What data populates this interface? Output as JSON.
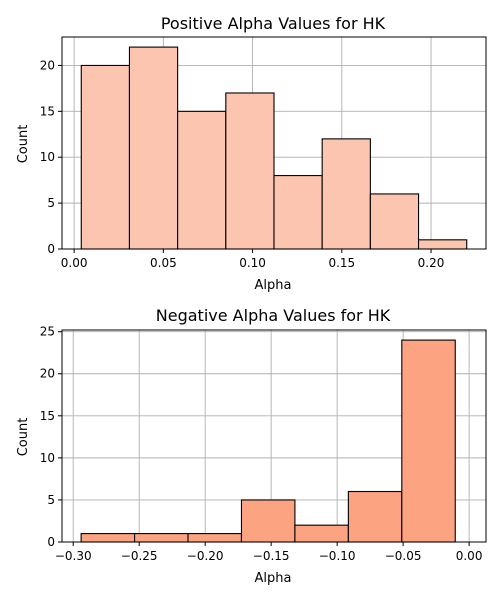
{
  "chart_data": [
    {
      "type": "bar",
      "title": "Positive Alpha Values for HK",
      "xlabel": "Alpha",
      "ylabel": "Count",
      "bin_edges": [
        0.004,
        0.031,
        0.058,
        0.085,
        0.112,
        0.139,
        0.166,
        0.193,
        0.22
      ],
      "values": [
        20,
        22,
        15,
        17,
        8,
        12,
        6,
        1
      ],
      "xlim": [
        -0.0068,
        0.2308
      ],
      "ylim": [
        0,
        23.1
      ],
      "xticks": [
        "0.00",
        "0.05",
        "0.10",
        "0.15",
        "0.20"
      ],
      "xtick_values": [
        0.0,
        0.05,
        0.1,
        0.15,
        0.2
      ],
      "yticks": [
        "0",
        "5",
        "10",
        "15",
        "20"
      ],
      "ytick_values": [
        0,
        5,
        10,
        15,
        20
      ],
      "grid": true,
      "color": "#fcc5b0"
    },
    {
      "type": "bar",
      "title": "Negative Alpha Values for HK",
      "xlabel": "Alpha",
      "ylabel": "Count",
      "bin_edges": [
        -0.294,
        -0.2535,
        -0.213,
        -0.1725,
        -0.132,
        -0.0915,
        -0.051,
        -0.0105
      ],
      "values": [
        1,
        1,
        1,
        5,
        2,
        6,
        24
      ],
      "bin_edges_note": "",
      "xlim": [
        -0.3085,
        0.0128
      ],
      "ylim": [
        0,
        25.2
      ],
      "xticks": [
        "−0.30",
        "−0.25",
        "−0.20",
        "−0.15",
        "−0.10",
        "−0.05",
        "0.00"
      ],
      "xtick_values": [
        -0.3,
        -0.25,
        -0.2,
        -0.15,
        -0.1,
        -0.05,
        0.0
      ],
      "yticks": [
        "0",
        "5",
        "10",
        "15",
        "20",
        "25"
      ],
      "ytick_values": [
        0,
        5,
        10,
        15,
        20,
        25
      ],
      "grid": true,
      "color": "#fca482"
    }
  ]
}
